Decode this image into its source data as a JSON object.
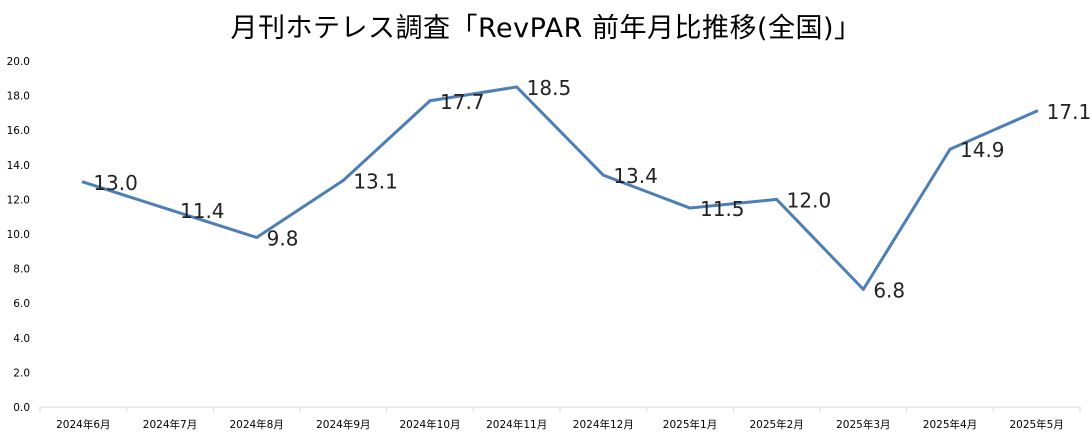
{
  "chart_data": {
    "type": "line",
    "title": "月刊ホテレス調査「RevPAR 前年月比推移(全国)」",
    "xlabel": "",
    "ylabel": "",
    "ylim": [
      0,
      20
    ],
    "yticks": [
      "0.0",
      "2.0",
      "4.0",
      "6.0",
      "8.0",
      "10.0",
      "12.0",
      "14.0",
      "16.0",
      "18.0",
      "20.0"
    ],
    "grid": false,
    "legend": "none",
    "categories": [
      "2024年6月",
      "2024年7月",
      "2024年8月",
      "2024年9月",
      "2024年10月",
      "2024年11月",
      "2024年12月",
      "2025年1月",
      "2025年2月",
      "2025年3月",
      "2025年4月",
      "2025年5月"
    ],
    "series": [
      {
        "values": [
          13.0,
          11.4,
          9.8,
          13.1,
          17.7,
          18.5,
          13.4,
          11.5,
          12.0,
          6.8,
          14.9,
          17.1
        ],
        "data_labels": [
          "13.0",
          "11.4",
          "9.8",
          "13.1",
          "17.7",
          "18.5",
          "13.4",
          "11.5",
          "12.0",
          "6.8",
          "14.9",
          "17.1"
        ],
        "color": "#4E7EB6"
      }
    ]
  }
}
